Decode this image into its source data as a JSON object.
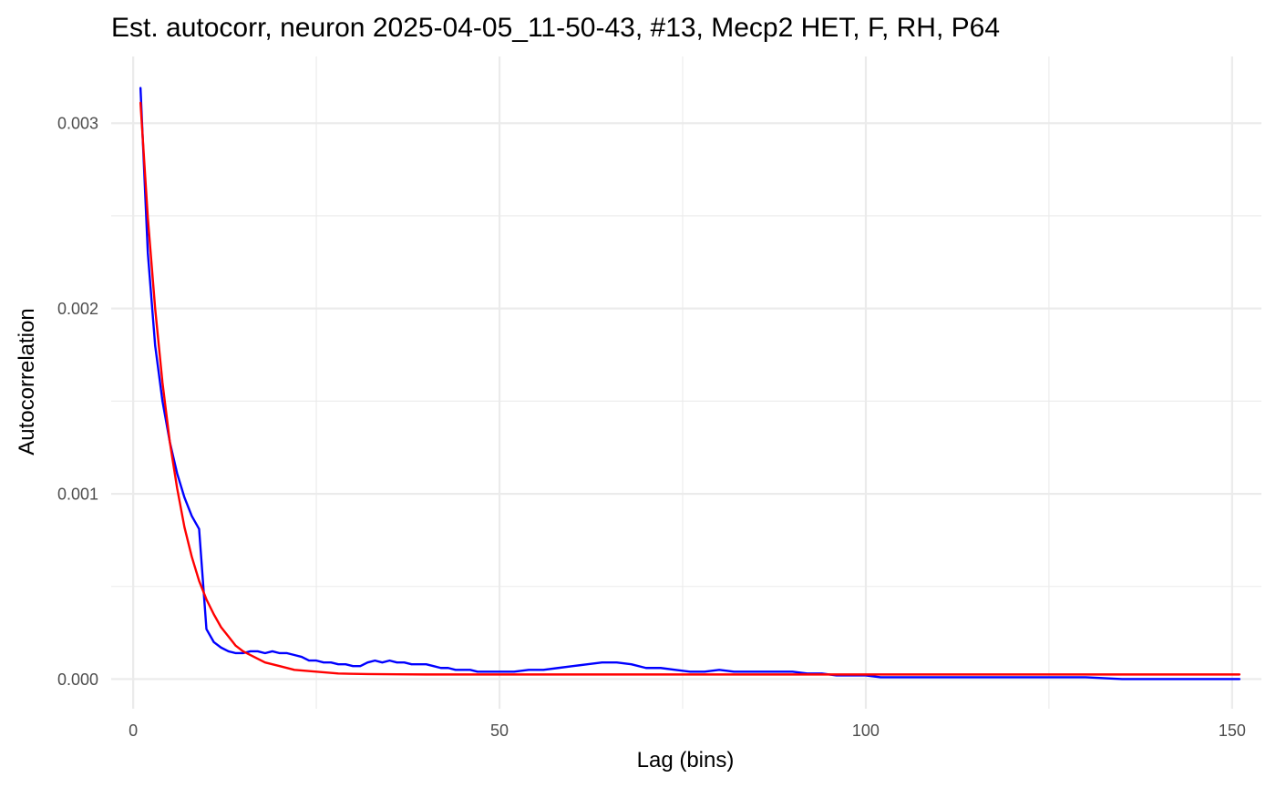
{
  "chart_data": {
    "type": "line",
    "title": "Est. autocorr, neuron 2025-04-05_11-50-43, #13, Mecp2 HET, F, RH, P64",
    "xlabel": "Lag (bins)",
    "ylabel": "Autocorrelation",
    "xlim": [
      -3,
      154
    ],
    "ylim": [
      -0.00016,
      0.00336
    ],
    "x_ticks": [
      0,
      50,
      100,
      150
    ],
    "y_ticks": [
      0.0,
      0.001,
      0.002,
      0.003
    ],
    "x_tick_labels": [
      "0",
      "50",
      "100",
      "150"
    ],
    "y_tick_labels": [
      "0.000",
      "0.001",
      "0.002",
      "0.003"
    ],
    "x_minor": [
      25,
      75,
      125
    ],
    "y_minor": [
      0.0005,
      0.0015,
      0.0025
    ],
    "grid": true,
    "colors": {
      "observed": "#0000ff",
      "fit": "#ff0000"
    },
    "series": [
      {
        "color": "#0000ff",
        "x": [
          1,
          2,
          3,
          4,
          5,
          6,
          7,
          8,
          9,
          10,
          11,
          12,
          13,
          14,
          15,
          16,
          17,
          18,
          19,
          20,
          21,
          22,
          23,
          24,
          25,
          26,
          27,
          28,
          29,
          30,
          31,
          32,
          33,
          34,
          35,
          36,
          37,
          38,
          39,
          40,
          41,
          42,
          43,
          44,
          45,
          46,
          47,
          48,
          49,
          50,
          52,
          54,
          56,
          58,
          60,
          62,
          64,
          66,
          68,
          70,
          72,
          74,
          76,
          78,
          80,
          82,
          84,
          86,
          88,
          90,
          92,
          94,
          96,
          98,
          100,
          102,
          104,
          106,
          108,
          110,
          115,
          120,
          125,
          130,
          135,
          140,
          145,
          151
        ],
        "y": [
          0.00319,
          0.0023,
          0.0018,
          0.0015,
          0.00128,
          0.00111,
          0.00098,
          0.00088,
          0.00081,
          0.00027,
          0.0002,
          0.00017,
          0.00015,
          0.00014,
          0.00014,
          0.00015,
          0.00015,
          0.00014,
          0.00015,
          0.00014,
          0.00014,
          0.00013,
          0.00012,
          0.0001,
          0.0001,
          9e-05,
          9e-05,
          8e-05,
          8e-05,
          7e-05,
          7e-05,
          9e-05,
          0.0001,
          9e-05,
          0.0001,
          9e-05,
          9e-05,
          8e-05,
          8e-05,
          8e-05,
          7e-05,
          6e-05,
          6e-05,
          5e-05,
          5e-05,
          5e-05,
          4e-05,
          4e-05,
          4e-05,
          4e-05,
          4e-05,
          5e-05,
          5e-05,
          6e-05,
          7e-05,
          8e-05,
          9e-05,
          9e-05,
          8e-05,
          6e-05,
          6e-05,
          5e-05,
          4e-05,
          4e-05,
          5e-05,
          4e-05,
          4e-05,
          4e-05,
          4e-05,
          4e-05,
          3e-05,
          3e-05,
          2e-05,
          2e-05,
          2e-05,
          1e-05,
          1e-05,
          1e-05,
          1e-05,
          1e-05,
          1e-05,
          1e-05,
          1e-05,
          1e-05,
          0.0,
          0.0,
          0.0,
          0.0
        ]
      },
      {
        "color": "#ff0000",
        "x": [
          1,
          2,
          3,
          4,
          5,
          6,
          7,
          8,
          9,
          10,
          11,
          12,
          13,
          14,
          15,
          16,
          18,
          20,
          22,
          25,
          28,
          32,
          36,
          40,
          50,
          60,
          80,
          100,
          120,
          151
        ],
        "y": [
          0.00311,
          0.00249,
          0.002,
          0.0016,
          0.00128,
          0.00103,
          0.00082,
          0.00066,
          0.00053,
          0.00043,
          0.00035,
          0.00028,
          0.00023,
          0.00018,
          0.00015,
          0.00013,
          9e-05,
          7e-05,
          5e-05,
          4e-05,
          3e-05,
          2.7e-05,
          2.6e-05,
          2.5e-05,
          2.5e-05,
          2.5e-05,
          2.5e-05,
          2.5e-05,
          2.5e-05,
          2.5e-05
        ]
      }
    ]
  }
}
